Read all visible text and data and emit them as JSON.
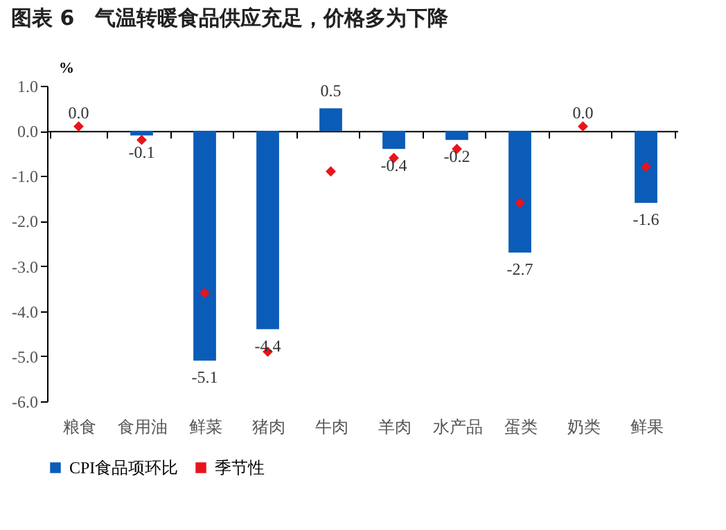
{
  "chart_data": {
    "type": "bar",
    "title": "图表 6　气温转暖食品供应充足，价格多为下降",
    "categories": [
      "粮食",
      "食用油",
      "鲜菜",
      "猪肉",
      "牛肉",
      "羊肉",
      "水产品",
      "蛋类",
      "奶类",
      "鲜果"
    ],
    "series": [
      {
        "name": "CPI食品项环比",
        "color": "#0a5cb8",
        "values": [
          0.0,
          -0.1,
          -5.1,
          -4.4,
          0.5,
          -0.4,
          -0.2,
          -2.7,
          0.0,
          -1.6
        ],
        "value_labels": [
          "0.0",
          "-0.1",
          "-5.1",
          "-4.4",
          "0.5",
          "-0.4",
          "-0.2",
          "-2.7",
          "0.0",
          "-1.6"
        ]
      },
      {
        "name": "季节性",
        "color": "#e8141c",
        "type": "scatter",
        "marker": "diamond",
        "values": [
          0.1,
          -0.2,
          -3.6,
          -4.9,
          -0.9,
          -0.6,
          -0.4,
          -1.6,
          0.1,
          -0.8
        ]
      }
    ],
    "ylabel": "%",
    "ylim": [
      -6,
      1
    ],
    "yticks": [
      {
        "value": -6,
        "label": "-6.0"
      },
      {
        "value": -5,
        "label": "-5.0"
      },
      {
        "value": -4,
        "label": "-4.0"
      },
      {
        "value": -3,
        "label": "-3.0"
      },
      {
        "value": -2,
        "label": "-2.0"
      },
      {
        "value": -1,
        "label": "-1.0"
      },
      {
        "value": 0,
        "label": "0.0"
      },
      {
        "value": 1,
        "label": "1.0"
      }
    ],
    "legend": "bottom"
  }
}
